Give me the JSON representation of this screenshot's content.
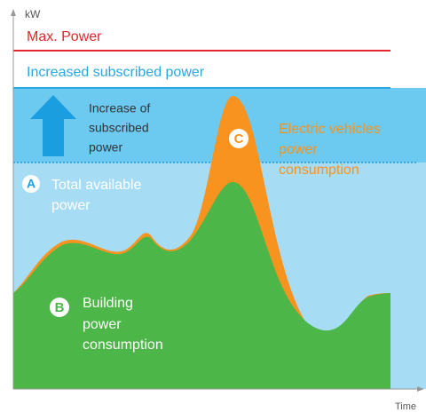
{
  "y_axis_label": "kW",
  "x_axis_label": "Time",
  "max_power": "Max. Power",
  "increased_power": "Increased subscribed power",
  "increase_note": [
    "Increase of",
    "subscribed",
    "power"
  ],
  "total": {
    "marker": "A",
    "lines": [
      "Total available",
      "power"
    ]
  },
  "building": {
    "marker": "B",
    "lines": [
      "Building",
      "power",
      "consumption"
    ]
  },
  "ev": {
    "marker": "C",
    "lines": [
      "Electric vehicles",
      "power",
      "consumption"
    ]
  }
}
